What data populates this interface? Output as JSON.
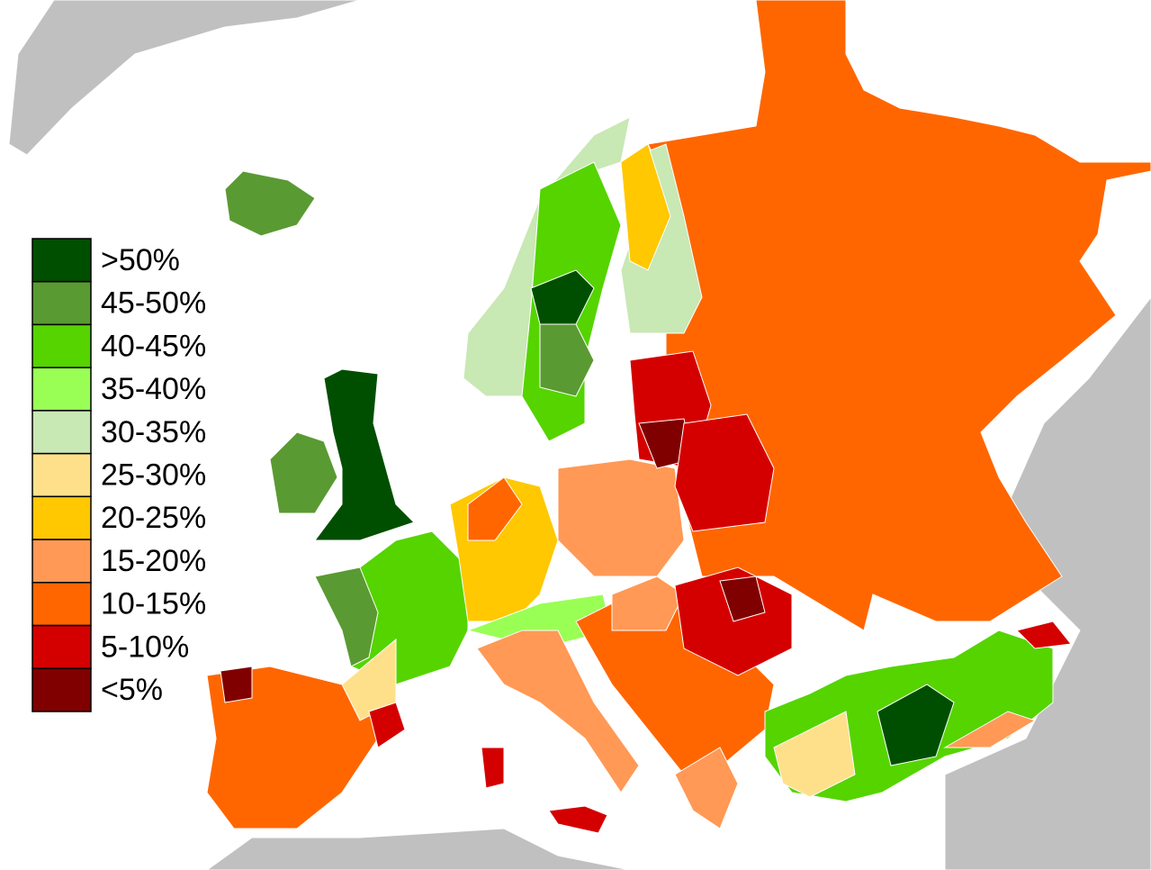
{
  "legend": {
    "items": [
      {
        "label": ">50%",
        "color": "#004f00"
      },
      {
        "label": "45-50%",
        "color": "#5a9a32"
      },
      {
        "label": "40-45%",
        "color": "#55d400"
      },
      {
        "label": "35-40%",
        "color": "#99ff55"
      },
      {
        "label": "30-35%",
        "color": "#c8e8b4"
      },
      {
        "label": "25-30%",
        "color": "#ffe08a"
      },
      {
        "label": "20-25%",
        "color": "#ffc800"
      },
      {
        "label": "15-20%",
        "color": "#ff9955"
      },
      {
        "label": "10-15%",
        "color": "#ff6600"
      },
      {
        "label": "5-10%",
        "color": "#d40000"
      },
      {
        "label": "<5%",
        "color": "#800000"
      }
    ]
  }
}
